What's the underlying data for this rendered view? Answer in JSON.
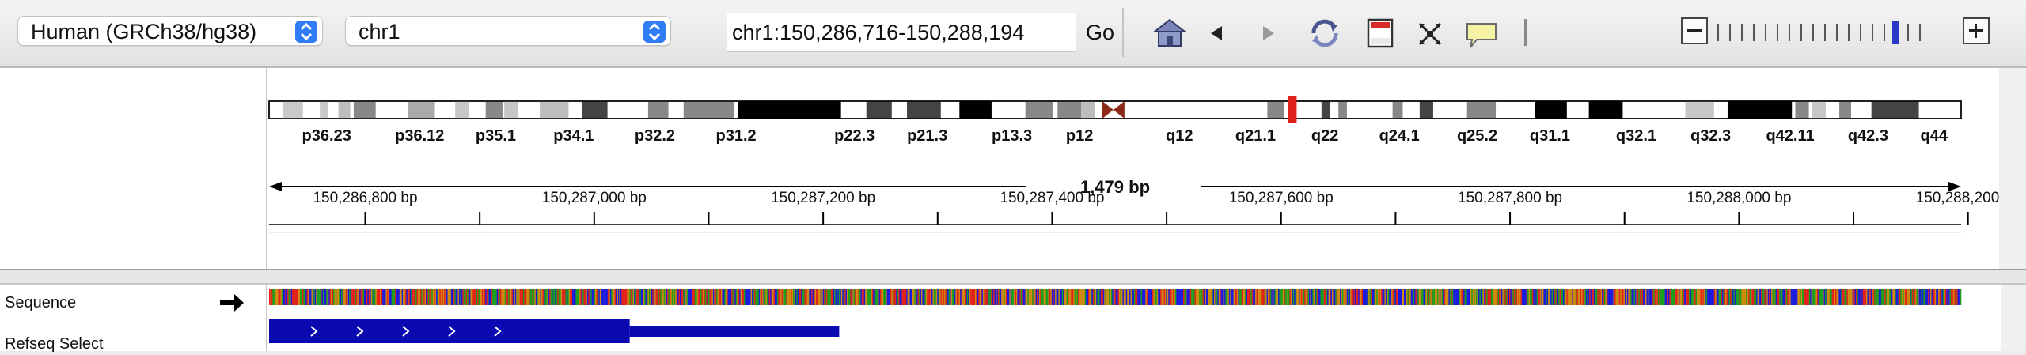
{
  "toolbar": {
    "genome": "Human (GRCh38/hg38)",
    "chromosome": "chr1",
    "locus": "chr1:150,286,716-150,288,194",
    "go_label": "Go",
    "icons": [
      "home-icon",
      "back-icon",
      "forward-icon",
      "refresh-icon",
      "region-of-interest-icon",
      "fit-to-window-icon",
      "popup-info-icon"
    ],
    "zoom": {
      "levels": 18,
      "current": 15
    }
  },
  "ideogram": {
    "band_labels": [
      {
        "label": "p36.23",
        "pos": 0.034
      },
      {
        "label": "p36.12",
        "pos": 0.089
      },
      {
        "label": "p35.1",
        "pos": 0.134
      },
      {
        "label": "p34.1",
        "pos": 0.18
      },
      {
        "label": "p32.2",
        "pos": 0.228
      },
      {
        "label": "p31.2",
        "pos": 0.276
      },
      {
        "label": "p22.3",
        "pos": 0.346
      },
      {
        "label": "p21.3",
        "pos": 0.389
      },
      {
        "label": "p13.3",
        "pos": 0.439
      },
      {
        "label": "p12",
        "pos": 0.479
      },
      {
        "label": "q12",
        "pos": 0.538
      },
      {
        "label": "q21.1",
        "pos": 0.583
      },
      {
        "label": "q22",
        "pos": 0.624
      },
      {
        "label": "q24.1",
        "pos": 0.668
      },
      {
        "label": "q25.2",
        "pos": 0.714
      },
      {
        "label": "q31.1",
        "pos": 0.757
      },
      {
        "label": "q32.1",
        "pos": 0.808
      },
      {
        "label": "q32.3",
        "pos": 0.852
      },
      {
        "label": "q42.11",
        "pos": 0.899
      },
      {
        "label": "q42.3",
        "pos": 0.945
      },
      {
        "label": "q44",
        "pos": 0.984
      }
    ],
    "current_position": 0.6045
  },
  "ruler": {
    "span_label": "1,479 bp",
    "start": 150286716,
    "end": 150288194,
    "labels": [
      "150,286,800 bp",
      "150,287,000 bp",
      "150,287,200 bp",
      "150,287,400 bp",
      "150,287,600 bp",
      "150,287,800 bp",
      "150,288,000 bp",
      "150,288,200 bp"
    ],
    "label_values": [
      150286800,
      150287000,
      150287200,
      150287400,
      150287600,
      150287800,
      150288000,
      150288200
    ],
    "minor_values": [
      150286900,
      150287100,
      150287300,
      150287500,
      150287700,
      150287900,
      150288100
    ]
  },
  "tracks": {
    "sequence_label": "Sequence",
    "refseq_label": "Refseq Select"
  },
  "colors": {
    "A": "#1e9e1e",
    "C": "#1c1cde",
    "G": "#cf8a0e",
    "T": "#e2231c",
    "gene": "#0a0ab0",
    "ideogram_marker": "#e0211c"
  },
  "gene": {
    "thick_start": 150286716,
    "thick_end": 150287031,
    "thin_end": 150287214
  }
}
